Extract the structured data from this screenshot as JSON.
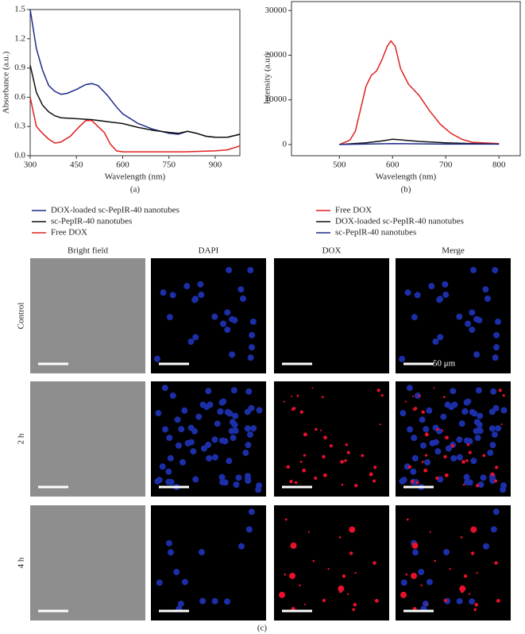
{
  "chart_data": [
    {
      "type": "line",
      "x_label": "Wavelength (nm)",
      "y_label": "Absorbance (a.u.)",
      "caption": "(a)",
      "xlim": [
        300,
        980
      ],
      "xticks": [
        300,
        450,
        600,
        750,
        900
      ],
      "ylim": [
        0,
        1.5
      ],
      "yticks": [
        {
          "value": 0,
          "label": "0.0"
        },
        0.3,
        0.6,
        0.9,
        1.2,
        1.5
      ],
      "series": [
        {
          "name": "DOX-loaded sc-PepIR-40 nanotubes",
          "color": "#1f2a8c",
          "x": [
            300,
            320,
            340,
            360,
            380,
            400,
            420,
            450,
            480,
            500,
            520,
            550,
            580,
            600,
            650,
            700,
            750,
            780,
            810,
            840,
            870,
            900,
            940,
            980
          ],
          "values": [
            1.5,
            1.1,
            0.88,
            0.72,
            0.66,
            0.63,
            0.64,
            0.68,
            0.73,
            0.74,
            0.72,
            0.62,
            0.5,
            0.43,
            0.33,
            0.27,
            0.23,
            0.22,
            0.25,
            0.23,
            0.2,
            0.19,
            0.19,
            0.22
          ]
        },
        {
          "name": "sc-PepIR-40 nanotubes",
          "color": "#111111",
          "x": [
            300,
            320,
            340,
            360,
            380,
            400,
            450,
            500,
            550,
            600,
            650,
            700,
            750,
            780,
            810,
            840,
            870,
            900,
            940,
            980
          ],
          "values": [
            0.93,
            0.65,
            0.52,
            0.45,
            0.41,
            0.39,
            0.38,
            0.37,
            0.35,
            0.33,
            0.29,
            0.26,
            0.24,
            0.23,
            0.25,
            0.23,
            0.2,
            0.19,
            0.19,
            0.22
          ]
        },
        {
          "name": "Free DOX",
          "color": "#e02020",
          "x": [
            300,
            320,
            340,
            360,
            380,
            400,
            430,
            460,
            480,
            500,
            520,
            540,
            560,
            580,
            600,
            700,
            800,
            900,
            940,
            980
          ],
          "values": [
            0.6,
            0.3,
            0.23,
            0.17,
            0.13,
            0.14,
            0.2,
            0.3,
            0.36,
            0.36,
            0.3,
            0.24,
            0.12,
            0.05,
            0.04,
            0.04,
            0.04,
            0.05,
            0.06,
            0.1
          ]
        }
      ]
    },
    {
      "type": "line",
      "x_label": "Wavelength (nm)",
      "y_label": "Intensity (a.u.)",
      "caption": "(b)",
      "xlim": [
        410,
        840
      ],
      "xticks": [
        500,
        600,
        700,
        800
      ],
      "ylim": [
        -2500,
        32000
      ],
      "yticks": [
        0,
        10000,
        20000,
        30000
      ],
      "series": [
        {
          "name": "Free DOX",
          "color": "#e02020",
          "x": [
            500,
            520,
            530,
            540,
            550,
            560,
            570,
            580,
            590,
            597,
            605,
            615,
            630,
            650,
            670,
            690,
            710,
            730,
            750,
            800
          ],
          "values": [
            0,
            1000,
            3000,
            8000,
            13000,
            15500,
            16500,
            19000,
            22000,
            23200,
            22000,
            17000,
            13500,
            11000,
            7500,
            4500,
            2500,
            1200,
            500,
            200
          ]
        },
        {
          "name": "DOX-loaded sc-PepIR-40 nanotubes",
          "color": "#111111",
          "x": [
            500,
            550,
            580,
            600,
            620,
            650,
            700,
            750,
            800
          ],
          "values": [
            0,
            400,
            800,
            1200,
            1000,
            700,
            400,
            200,
            100
          ]
        },
        {
          "name": "sc-PepIR-40 nanotubes",
          "color": "#1f2a8c",
          "x": [
            500,
            600,
            700,
            800
          ],
          "values": [
            0,
            200,
            100,
            100
          ]
        }
      ]
    }
  ],
  "panel_c": {
    "columns": [
      "Bright field",
      "DAPI",
      "DOX",
      "Merge"
    ],
    "rows": [
      "Control",
      "2 h",
      "4 h"
    ],
    "scale_label": "50 μm",
    "caption": "(c)"
  }
}
